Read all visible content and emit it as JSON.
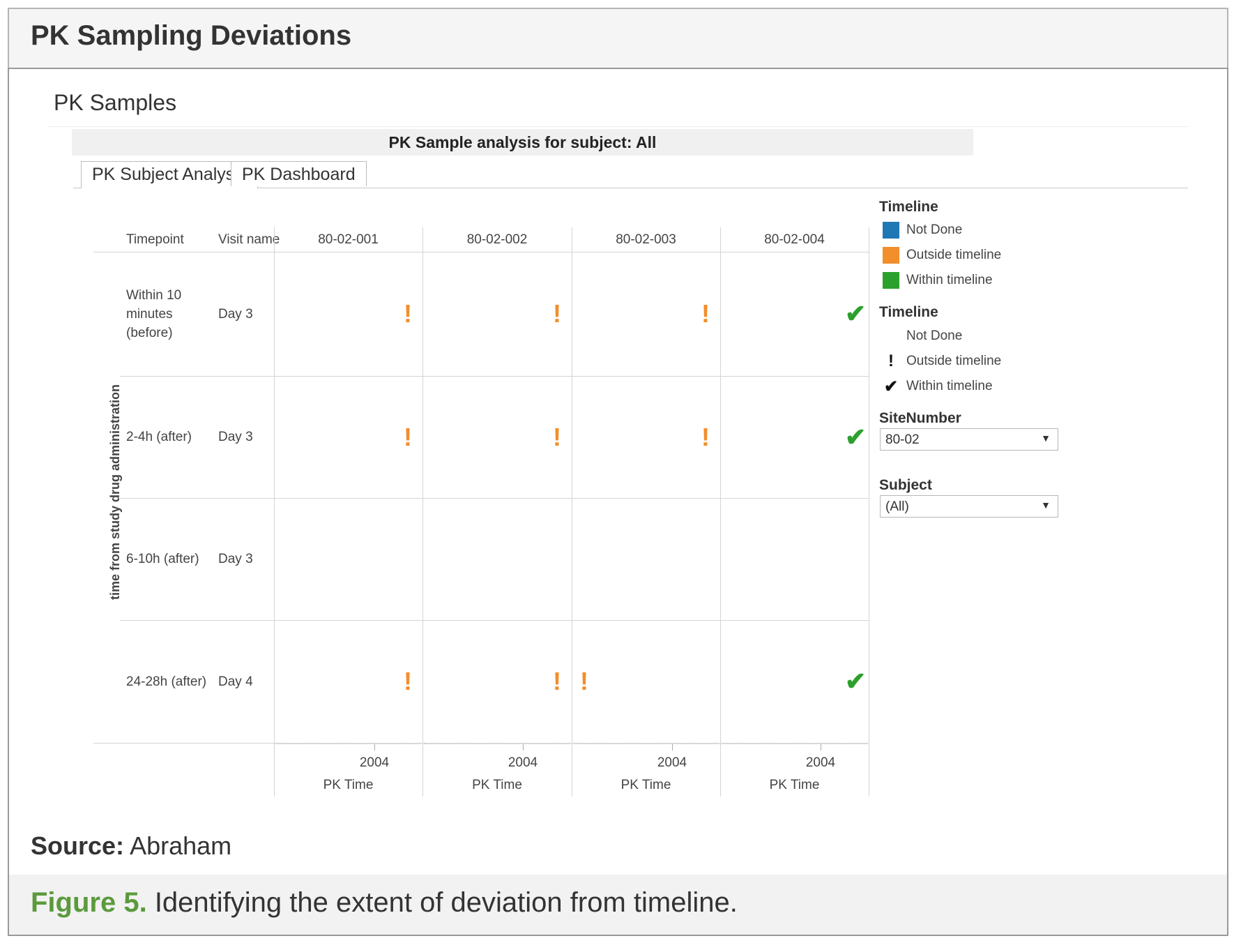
{
  "page_title": "PK Sampling Deviations",
  "section_title": "PK Samples",
  "tabs": [
    {
      "label": "PK Subject Analysis",
      "active": true
    },
    {
      "label": "PK Dashboard",
      "active": false
    }
  ],
  "viz": {
    "title": "PK Sample analysis for subject: All",
    "y_axis_label": "time from study drug administration",
    "row_headers": {
      "timepoint": "Timepoint",
      "visit": "Visit name"
    },
    "columns": [
      "80-02-001",
      "80-02-002",
      "80-02-003",
      "80-02-004"
    ],
    "rows": [
      {
        "timepoint": [
          "Within 10",
          "minutes",
          "(before)"
        ],
        "visit": "Day 3",
        "marks": [
          "outside",
          "outside",
          "outside",
          "within"
        ]
      },
      {
        "timepoint": [
          "2-4h (after)"
        ],
        "visit": "Day 3",
        "marks": [
          "outside",
          "outside",
          "outside",
          "within"
        ]
      },
      {
        "timepoint": [
          "6-10h (after)"
        ],
        "visit": "Day 3",
        "marks": [
          "",
          "",
          "",
          ""
        ]
      },
      {
        "timepoint": [
          "24-28h (after)"
        ],
        "visit": "Day 4",
        "marks": [
          "outside",
          "outside",
          "outside-early",
          "within"
        ]
      }
    ],
    "x_tick_label": "2004",
    "x_axis_label": "PK Time"
  },
  "legend_color": {
    "title": "Timeline",
    "items": [
      {
        "label": "Not Done",
        "color": "#1f77b4"
      },
      {
        "label": "Outside timeline",
        "color": "#f28e2b"
      },
      {
        "label": "Within timeline",
        "color": "#2ca02c"
      }
    ]
  },
  "legend_shape": {
    "title": "Timeline",
    "items": [
      {
        "label": "Not Done",
        "glyph": ""
      },
      {
        "label": "Outside timeline",
        "glyph": "!"
      },
      {
        "label": "Within timeline",
        "glyph": "✔"
      }
    ]
  },
  "filters": {
    "site": {
      "label": "SiteNumber",
      "value": "80-02"
    },
    "subject": {
      "label": "Subject",
      "value": "(All)"
    }
  },
  "source": {
    "prefix": "Source:",
    "text": " Abraham"
  },
  "caption": {
    "fig": "Figure 5.",
    "text": " Identifying the extent of deviation from timeline."
  },
  "marks": {
    "outside": "!",
    "within": "✔"
  },
  "colors": {
    "outside": "#f28e2b",
    "within": "#2ca02c"
  }
}
